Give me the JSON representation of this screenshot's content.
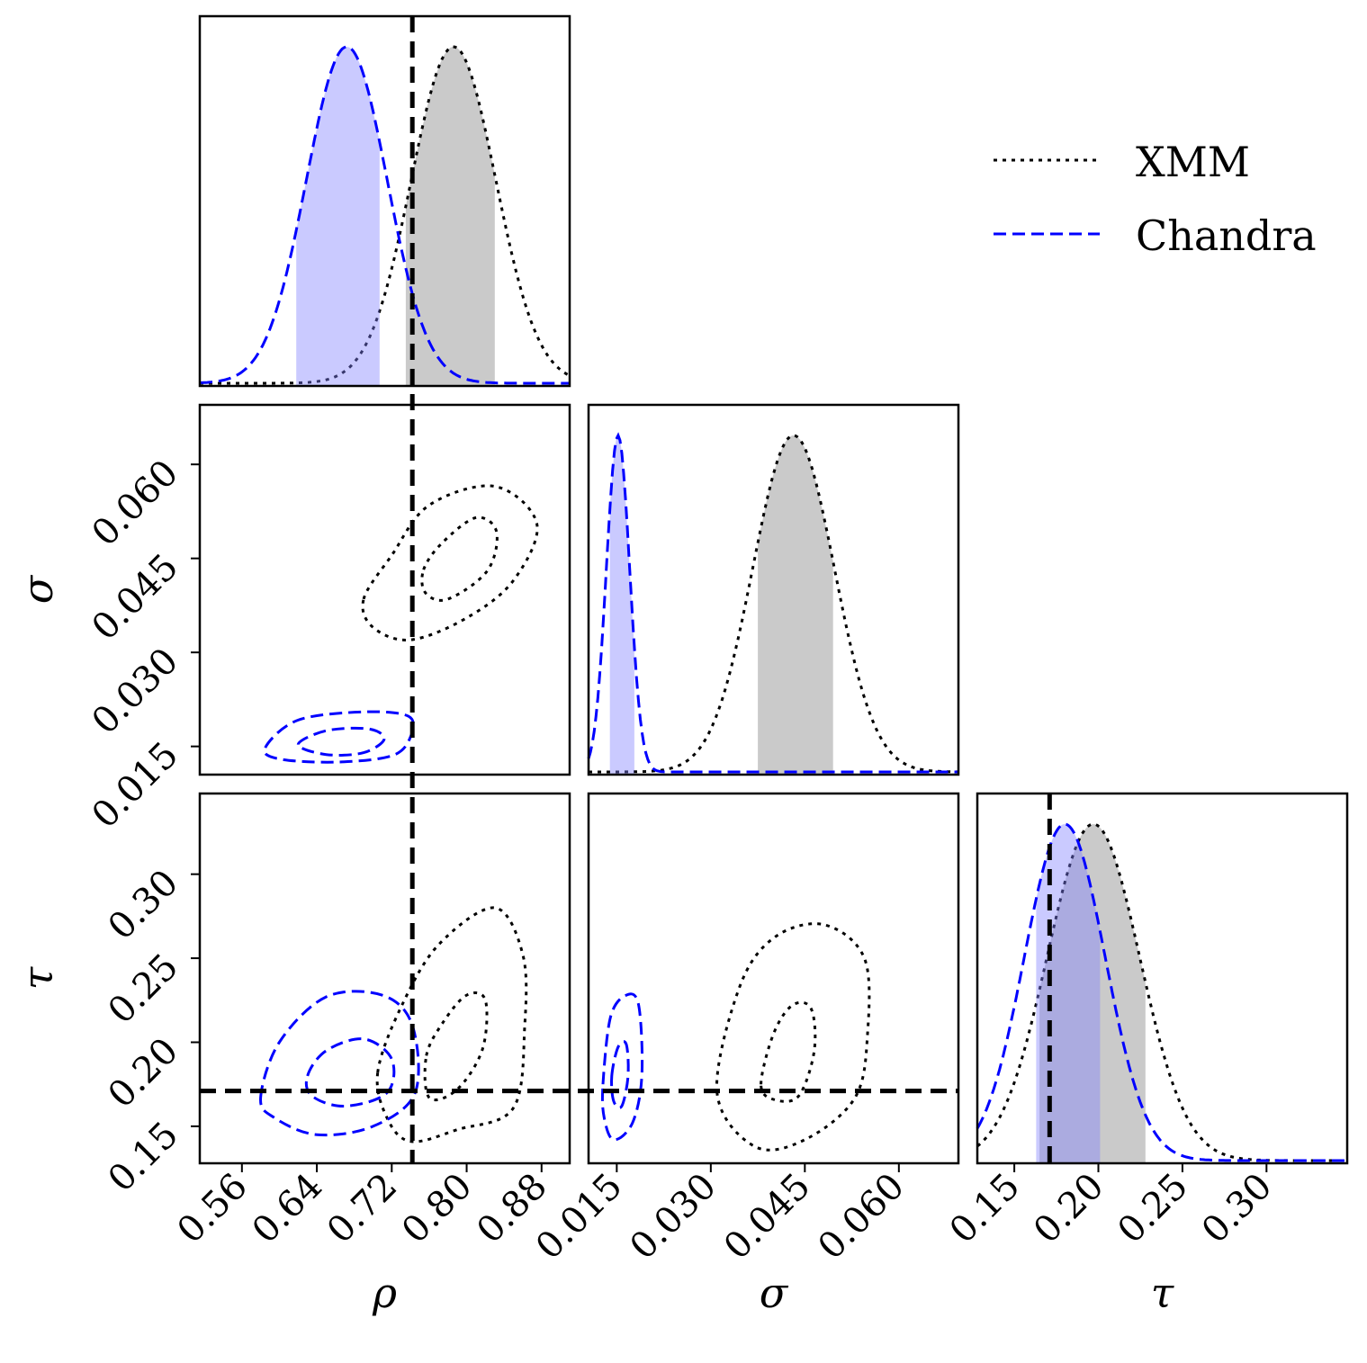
{
  "chart_data": {
    "type": "corner",
    "parameters": [
      {
        "key": "rho",
        "label": "ρ",
        "range": [
          0.515,
          0.91
        ],
        "ticks": [
          "0.56",
          "0.64",
          "0.72",
          "0.80",
          "0.88"
        ],
        "truth": 0.742
      },
      {
        "key": "sigma",
        "label": "σ",
        "range": [
          0.0105,
          0.0695
        ],
        "ticks": [
          "0.015",
          "0.030",
          "0.045",
          "0.060"
        ],
        "truth": null
      },
      {
        "key": "tau",
        "label": "τ",
        "range": [
          0.128,
          0.348
        ],
        "ticks": [
          "0.15",
          "0.20",
          "0.25",
          "0.30"
        ],
        "truth": 0.171
      }
    ],
    "legend": {
      "position": "top-right",
      "entries": [
        "XMM",
        "Chandra"
      ]
    },
    "series": [
      {
        "name": "XMM",
        "color": "#000000",
        "style": "dotted",
        "fill": "#808080",
        "marginals": {
          "rho": {
            "mu": 0.786,
            "sd": 0.045,
            "hpd": [
              0.735,
              0.83
            ]
          },
          "sigma": {
            "mu": 0.0432,
            "sd": 0.0065,
            "hpd": [
              0.0375,
              0.0495
            ]
          },
          "tau": {
            "mu": 0.197,
            "sd": 0.0275,
            "hpd": [
              0.165,
              0.228
            ]
          }
        },
        "contours": {
          "rho-sigma": [
            [
              [
                0.754,
                0.0432
              ],
              [
                0.774,
                0.0475
              ],
              [
                0.81,
                0.0515
              ],
              [
                0.832,
                0.0492
              ],
              [
                0.822,
                0.043
              ],
              [
                0.78,
                0.0385
              ],
              [
                0.756,
                0.0395
              ]
            ],
            [
              [
                0.69,
                0.0385
              ],
              [
                0.72,
                0.0455
              ],
              [
                0.76,
                0.0535
              ],
              [
                0.83,
                0.0565
              ],
              [
                0.875,
                0.0505
              ],
              [
                0.85,
                0.0415
              ],
              [
                0.8,
                0.0355
              ],
              [
                0.74,
                0.032
              ],
              [
                0.7,
                0.034
              ]
            ]
          ],
          "rho-tau": [
            [
              [
                0.757,
                0.192
              ],
              [
                0.775,
                0.212
              ],
              [
                0.8,
                0.228
              ],
              [
                0.82,
                0.225
              ],
              [
                0.817,
                0.196
              ],
              [
                0.79,
                0.172
              ],
              [
                0.76,
                0.167
              ]
            ],
            [
              [
                0.705,
                0.182
              ],
              [
                0.73,
                0.221
              ],
              [
                0.77,
                0.258
              ],
              [
                0.83,
                0.28
              ],
              [
                0.86,
                0.252
              ],
              [
                0.862,
                0.21
              ],
              [
                0.85,
                0.161
              ],
              [
                0.79,
                0.148
              ],
              [
                0.74,
                0.141
              ],
              [
                0.715,
                0.155
              ]
            ]
          ],
          "sigma-tau": [
            [
              [
                0.038,
                0.175
              ],
              [
                0.04,
                0.205
              ],
              [
                0.043,
                0.222
              ],
              [
                0.046,
                0.22
              ],
              [
                0.0465,
                0.195
              ],
              [
                0.044,
                0.168
              ],
              [
                0.04,
                0.166
              ]
            ],
            [
              [
                0.031,
                0.17
              ],
              [
                0.0345,
                0.232
              ],
              [
                0.04,
                0.262
              ],
              [
                0.048,
                0.27
              ],
              [
                0.0545,
                0.25
              ],
              [
                0.055,
                0.205
              ],
              [
                0.053,
                0.167
              ],
              [
                0.045,
                0.142
              ],
              [
                0.037,
                0.138
              ]
            ]
          ]
        }
      },
      {
        "name": "Chandra",
        "color": "#0000ff",
        "style": "dashed",
        "fill": "#8080ff",
        "marginals": {
          "rho": {
            "mu": 0.672,
            "sd": 0.043,
            "hpd": [
              0.618,
              0.707
            ]
          },
          "sigma": {
            "mu": 0.0152,
            "sd": 0.00185,
            "hpd": [
              0.0139,
              0.0178
            ]
          },
          "tau": {
            "mu": 0.18,
            "sd": 0.024,
            "hpd": [
              0.163,
              0.201
            ]
          }
        },
        "contours": {
          "rho-sigma": [
            [
              [
                0.62,
                0.0153
              ],
              [
                0.65,
                0.0175
              ],
              [
                0.695,
                0.0178
              ],
              [
                0.712,
                0.0162
              ],
              [
                0.69,
                0.014
              ],
              [
                0.65,
                0.0137
              ]
            ],
            [
              [
                0.585,
                0.0148
              ],
              [
                0.62,
                0.0192
              ],
              [
                0.69,
                0.0205
              ],
              [
                0.738,
                0.0198
              ],
              [
                0.74,
                0.0165
              ],
              [
                0.72,
                0.0135
              ],
              [
                0.66,
                0.0125
              ],
              [
                0.6,
                0.013
              ]
            ]
          ],
          "rho-tau": [
            [
              [
                0.63,
                0.18
              ],
              [
                0.65,
                0.195
              ],
              [
                0.69,
                0.202
              ],
              [
                0.72,
                0.19
              ],
              [
                0.715,
                0.17
              ],
              [
                0.67,
                0.162
              ],
              [
                0.635,
                0.168
              ]
            ],
            [
              [
                0.58,
                0.167
              ],
              [
                0.6,
                0.2
              ],
              [
                0.65,
                0.227
              ],
              [
                0.71,
                0.228
              ],
              [
                0.742,
                0.21
              ],
              [
                0.745,
                0.17
              ],
              [
                0.7,
                0.15
              ],
              [
                0.64,
                0.145
              ],
              [
                0.595,
                0.155
              ]
            ]
          ],
          "sigma-tau": [
            [
              [
                0.0142,
                0.18
              ],
              [
                0.0152,
                0.197
              ],
              [
                0.0165,
                0.199
              ],
              [
                0.0168,
                0.18
              ],
              [
                0.0158,
                0.162
              ],
              [
                0.0145,
                0.165
              ]
            ],
            [
              [
                0.0128,
                0.175
              ],
              [
                0.014,
                0.215
              ],
              [
                0.0165,
                0.228
              ],
              [
                0.0185,
                0.222
              ],
              [
                0.019,
                0.18
              ],
              [
                0.0175,
                0.152
              ],
              [
                0.0145,
                0.142
              ],
              [
                0.013,
                0.155
              ]
            ]
          ]
        }
      }
    ]
  }
}
